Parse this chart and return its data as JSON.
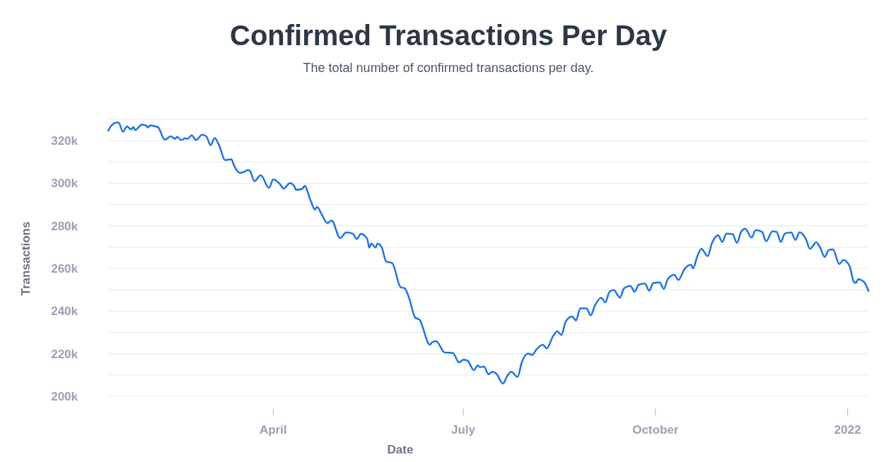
{
  "chart_data": {
    "type": "line",
    "title": "Confirmed Transactions Per Day",
    "subtitle": "The total number of confirmed transactions per day.",
    "xlabel": "Date",
    "ylabel": "Transactions",
    "grid": "y",
    "xlim": [
      "2021-01-12",
      "2022-01-11"
    ],
    "xticks": [
      {
        "value": "2021-04-01",
        "label": "April"
      },
      {
        "value": "2021-07-01",
        "label": "July"
      },
      {
        "value": "2021-10-01",
        "label": "October"
      },
      {
        "value": "2022-01-01",
        "label": "2022"
      }
    ],
    "ylim": [
      200000,
      330000
    ],
    "yticks": [
      {
        "value": 200000,
        "label": "200k"
      },
      {
        "value": 210000,
        "label": null
      },
      {
        "value": 220000,
        "label": "220k"
      },
      {
        "value": 230000,
        "label": null
      },
      {
        "value": 240000,
        "label": "240k"
      },
      {
        "value": 250000,
        "label": null
      },
      {
        "value": 260000,
        "label": "260k"
      },
      {
        "value": 270000,
        "label": null
      },
      {
        "value": 280000,
        "label": "280k"
      },
      {
        "value": 290000,
        "label": null
      },
      {
        "value": 300000,
        "label": "300k"
      },
      {
        "value": 310000,
        "label": null
      },
      {
        "value": 320000,
        "label": "320k"
      },
      {
        "value": 330000,
        "label": null
      }
    ],
    "x": [
      "2021-01-12",
      "2021-01-13",
      "2021-01-16",
      "2021-01-17",
      "2021-01-19",
      "2021-01-21",
      "2021-01-23",
      "2021-01-24",
      "2021-01-25",
      "2021-01-28",
      "2021-01-30",
      "2021-01-31",
      "2021-02-01",
      "2021-02-04",
      "2021-02-05",
      "2021-02-08",
      "2021-02-11",
      "2021-02-13",
      "2021-02-14",
      "2021-02-16",
      "2021-02-18",
      "2021-02-19",
      "2021-02-21",
      "2021-02-23",
      "2021-02-26",
      "2021-02-28",
      "2021-03-02",
      "2021-03-04",
      "2021-03-06",
      "2021-03-09",
      "2021-03-12",
      "2021-03-13",
      "2021-03-16",
      "2021-03-18",
      "2021-03-20",
      "2021-03-21",
      "2021-03-23",
      "2021-03-26",
      "2021-03-30",
      "2021-04-01",
      "2021-04-04",
      "2021-04-06",
      "2021-04-09",
      "2021-04-11",
      "2021-04-12",
      "2021-04-15",
      "2021-04-16",
      "2021-04-19",
      "2021-04-21",
      "2021-04-22",
      "2021-04-24",
      "2021-04-27",
      "2021-04-29",
      "2021-05-03",
      "2021-05-06",
      "2021-05-09",
      "2021-05-11",
      "2021-05-13",
      "2021-05-16",
      "2021-05-17",
      "2021-05-18",
      "2021-05-20",
      "2021-05-21",
      "2021-05-23",
      "2021-05-25",
      "2021-05-28",
      "2021-06-01",
      "2021-06-03",
      "2021-06-05",
      "2021-06-08",
      "2021-06-10",
      "2021-06-15",
      "2021-06-16",
      "2021-06-18",
      "2021-06-22",
      "2021-06-26",
      "2021-06-29",
      "2021-07-01",
      "2021-07-03",
      "2021-07-06",
      "2021-07-08",
      "2021-07-09",
      "2021-07-11",
      "2021-07-13",
      "2021-07-15",
      "2021-07-17",
      "2021-07-20",
      "2021-07-22",
      "2021-07-24",
      "2021-07-27",
      "2021-07-29",
      "2021-08-01",
      "2021-08-03",
      "2021-08-05",
      "2021-08-08",
      "2021-08-10",
      "2021-08-13",
      "2021-08-15",
      "2021-08-17",
      "2021-08-19",
      "2021-08-22",
      "2021-08-24",
      "2021-08-26",
      "2021-08-29",
      "2021-08-31",
      "2021-09-02",
      "2021-09-05",
      "2021-09-07",
      "2021-09-09",
      "2021-09-11",
      "2021-09-14",
      "2021-09-16",
      "2021-09-19",
      "2021-09-21",
      "2021-09-23",
      "2021-09-26",
      "2021-09-28",
      "2021-09-30",
      "2021-10-03",
      "2021-10-05",
      "2021-10-07",
      "2021-10-10",
      "2021-10-12",
      "2021-10-15",
      "2021-10-18",
      "2021-10-19",
      "2021-10-21",
      "2021-10-23",
      "2021-10-26",
      "2021-10-28",
      "2021-10-31",
      "2021-11-02",
      "2021-11-04",
      "2021-11-07",
      "2021-11-09",
      "2021-11-11",
      "2021-11-13",
      "2021-11-16",
      "2021-11-18",
      "2021-11-21",
      "2021-11-23",
      "2021-11-26",
      "2021-11-28",
      "2021-11-30",
      "2021-12-02",
      "2021-12-05",
      "2021-12-07",
      "2021-12-09",
      "2021-12-12",
      "2021-12-14",
      "2021-12-17",
      "2021-12-19",
      "2021-12-21",
      "2021-12-23",
      "2021-12-25",
      "2021-12-28",
      "2021-12-30",
      "2022-01-02",
      "2022-01-04",
      "2022-01-05",
      "2022-01-06",
      "2022-01-09",
      "2022-01-11"
    ],
    "series": [
      {
        "color": "#1a73e8",
        "line_style": "solid",
        "values": [
          324700,
          326400,
          328500,
          328500,
          324200,
          326700,
          325300,
          326400,
          325000,
          327500,
          327200,
          326200,
          327200,
          326600,
          326200,
          320500,
          322000,
          320900,
          321800,
          320300,
          321100,
          320900,
          322500,
          320300,
          322800,
          322000,
          317900,
          321200,
          318100,
          310900,
          311300,
          308900,
          304900,
          305400,
          306200,
          305600,
          301000,
          303800,
          297900,
          301800,
          299900,
          297500,
          300100,
          298800,
          296900,
          297500,
          298800,
          291600,
          287700,
          289000,
          285800,
          281300,
          282500,
          274300,
          276900,
          276400,
          273900,
          276300,
          273900,
          269800,
          271700,
          269800,
          271700,
          269800,
          263400,
          262500,
          251200,
          250700,
          246300,
          236900,
          236000,
          224200,
          225300,
          225900,
          220600,
          220300,
          215900,
          217200,
          216800,
          212300,
          214500,
          213700,
          213900,
          210400,
          211500,
          210400,
          206000,
          209500,
          211500,
          209100,
          215900,
          220100,
          219400,
          222000,
          224200,
          222500,
          228300,
          230500,
          228800,
          235000,
          237500,
          235600,
          241300,
          241300,
          238000,
          242600,
          246300,
          244100,
          249100,
          249900,
          246300,
          250700,
          251800,
          249100,
          252400,
          252900,
          249600,
          253200,
          253500,
          250400,
          255100,
          257000,
          254600,
          259900,
          261800,
          260100,
          265600,
          269200,
          265800,
          271700,
          275600,
          272500,
          276400,
          276100,
          272000,
          277200,
          278700,
          274500,
          278000,
          277200,
          272800,
          277400,
          277200,
          272500,
          276400,
          276900,
          273400,
          277000,
          273900,
          269200,
          272300,
          269500,
          265400,
          268700,
          269000,
          262100,
          264000,
          261000,
          253700,
          253200,
          255000,
          253500,
          249400
        ]
      }
    ]
  }
}
